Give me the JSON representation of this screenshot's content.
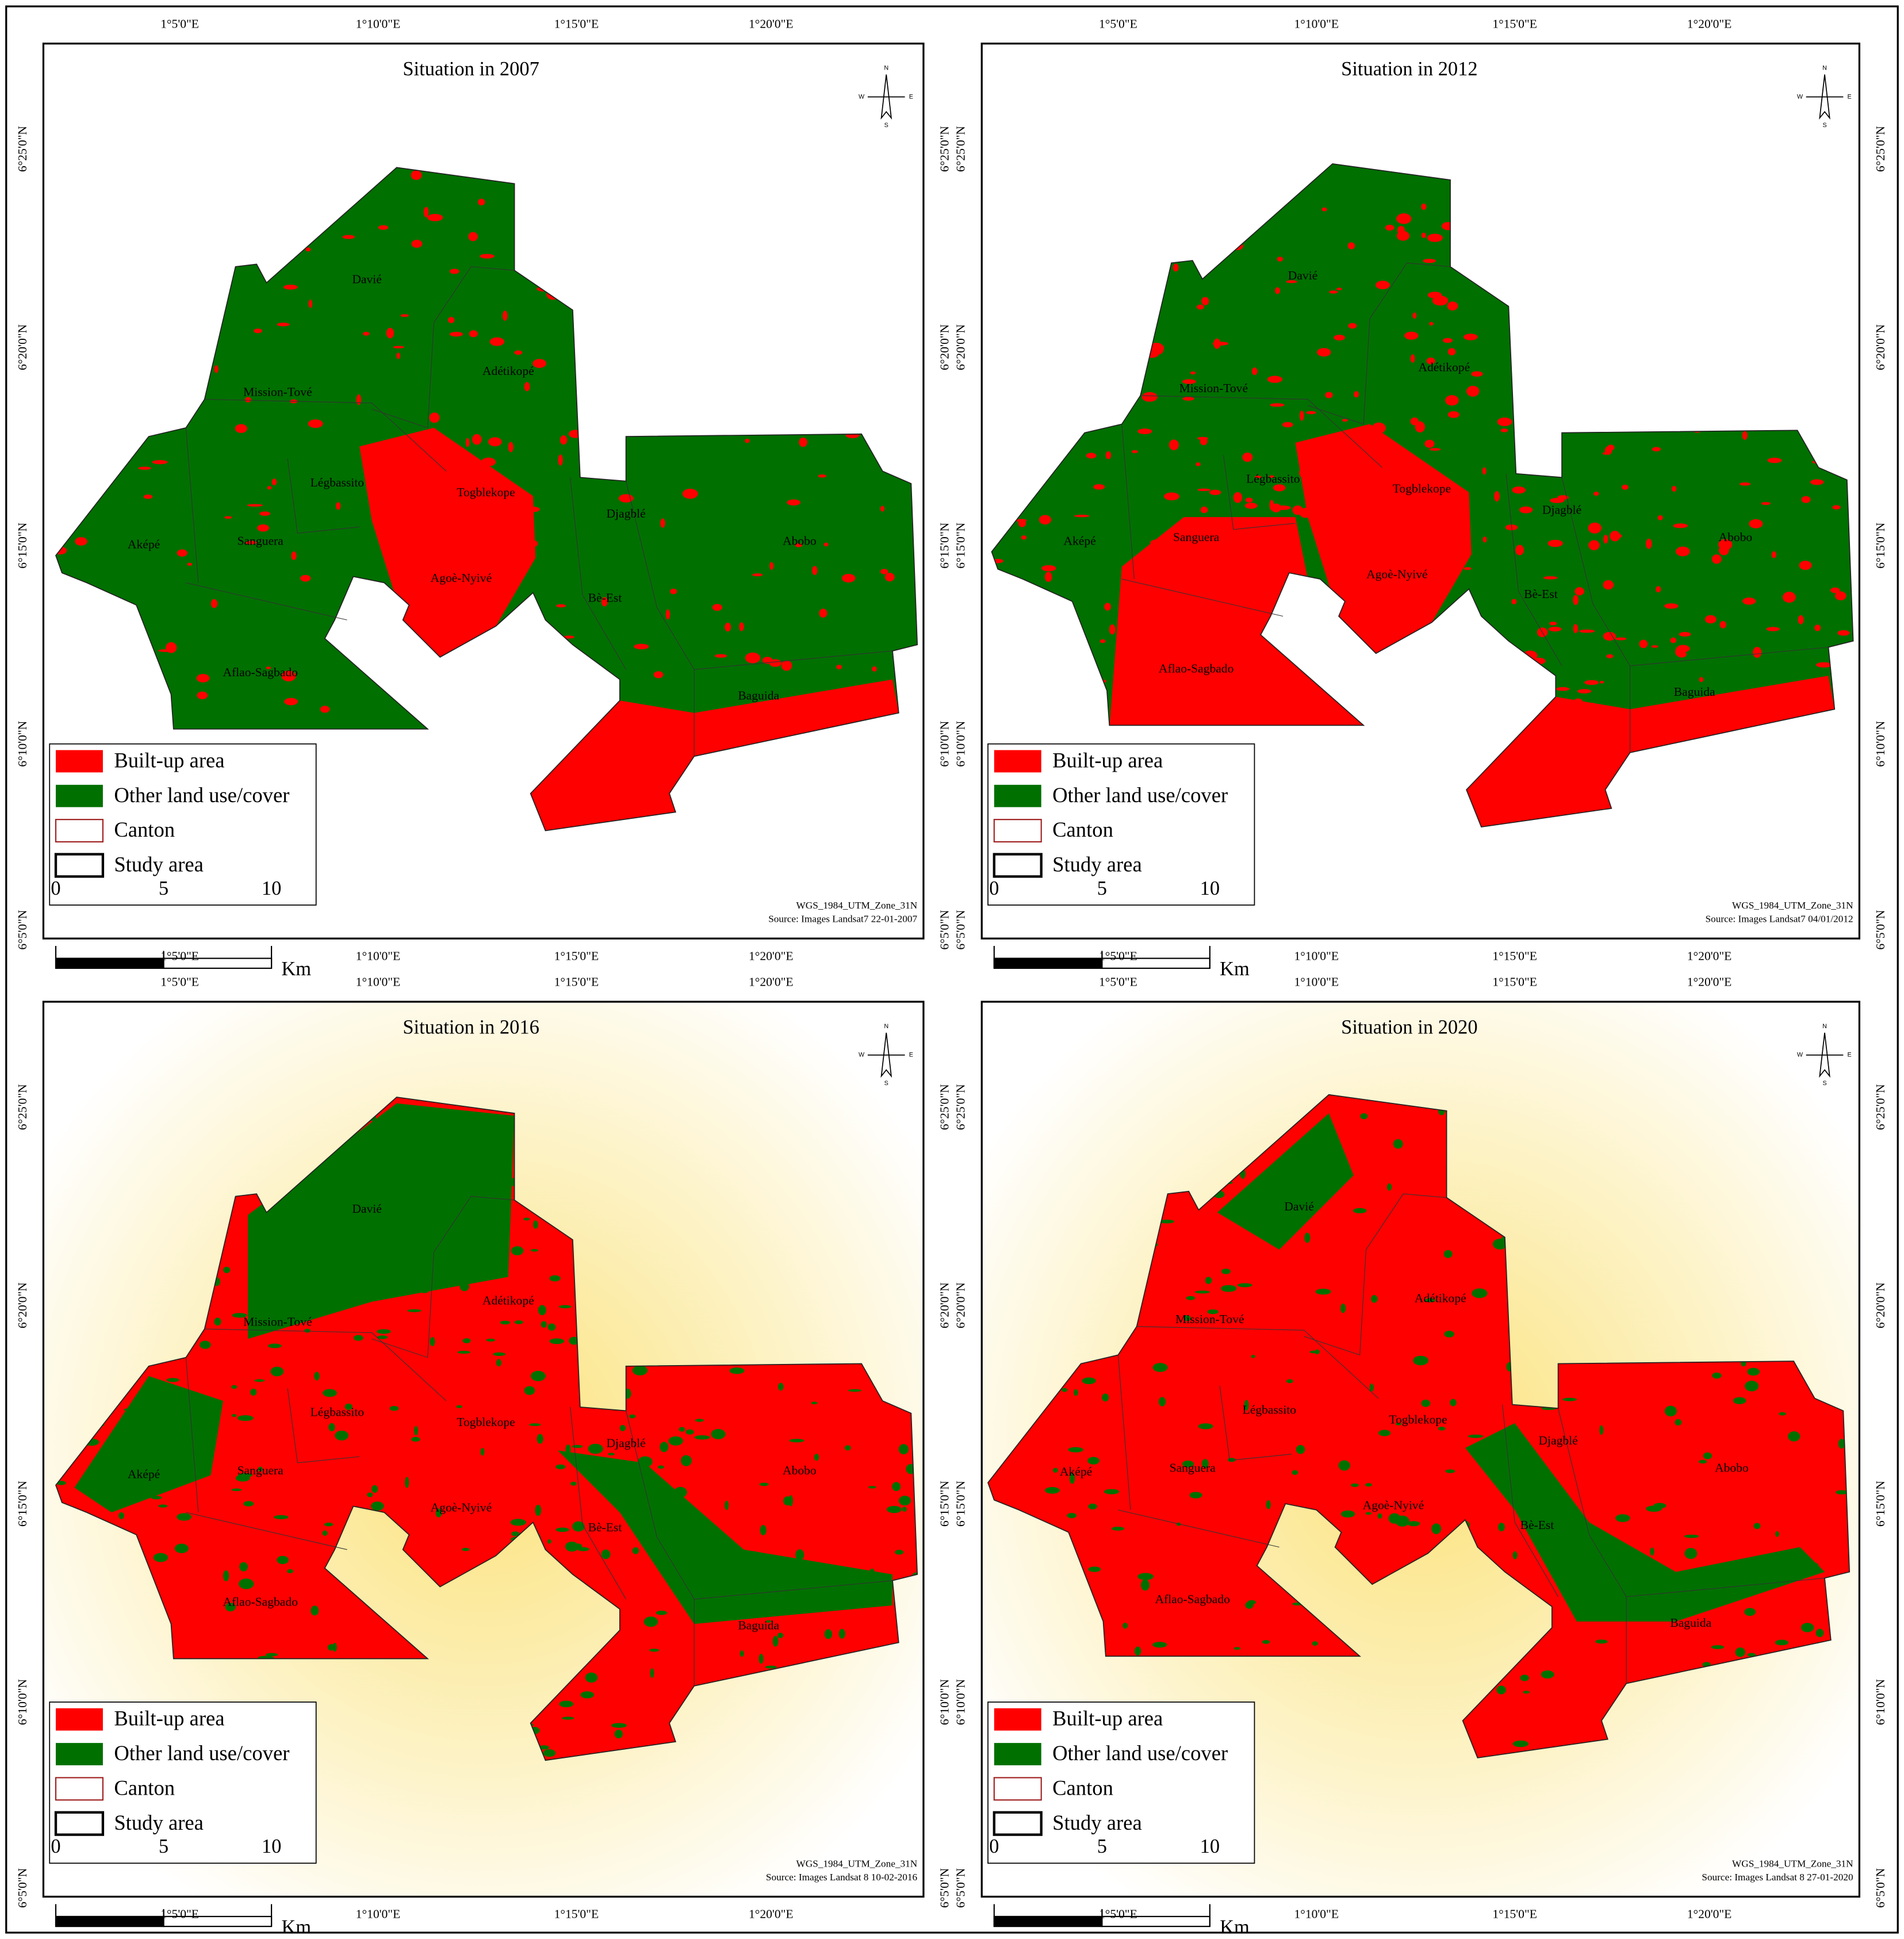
{
  "panels": [
    {
      "title": "Situation in 2007",
      "source": "Source: Images Landsat7 22-01-2007"
    },
    {
      "title": "Situation in 2012",
      "source": "Source: Images Landsat7 04/01/2012"
    },
    {
      "title": "Situation in 2016",
      "source": "Source: Images Landsat 8 10-02-2016"
    },
    {
      "title": "Situation in 2020",
      "source": "Source: Images Landsat 8 27-01-2020"
    }
  ],
  "projection": "WGS_1984_UTM_Zone_31N",
  "x_labels": [
    "1°5'0\"E",
    "1°10'0\"E",
    "1°15'0\"E",
    "1°20'0\"E"
  ],
  "y_labels": [
    "6°25'0\"N",
    "6°20'0\"N",
    "6°15'0\"N",
    "6°10'0\"N",
    "6°5'0\"N"
  ],
  "cantons": [
    "Davié",
    "Adétikopé",
    "Mission-Tové",
    "Légbassito",
    "Togblekope",
    "Djagblé",
    "Aképé",
    "Sanguera",
    "Abobo",
    "Agoè-Nyivé",
    "Bè-Est",
    "Aflao-Sagbado",
    "Baguida"
  ],
  "legend": [
    "Built-up area",
    "Other land use/cover",
    "Canton",
    "Study area"
  ],
  "scale": {
    "ticks": [
      0,
      5,
      10
    ],
    "unit": "Km"
  },
  "north": {
    "n": "N",
    "s": "S",
    "e": "E",
    "w": "W"
  }
}
